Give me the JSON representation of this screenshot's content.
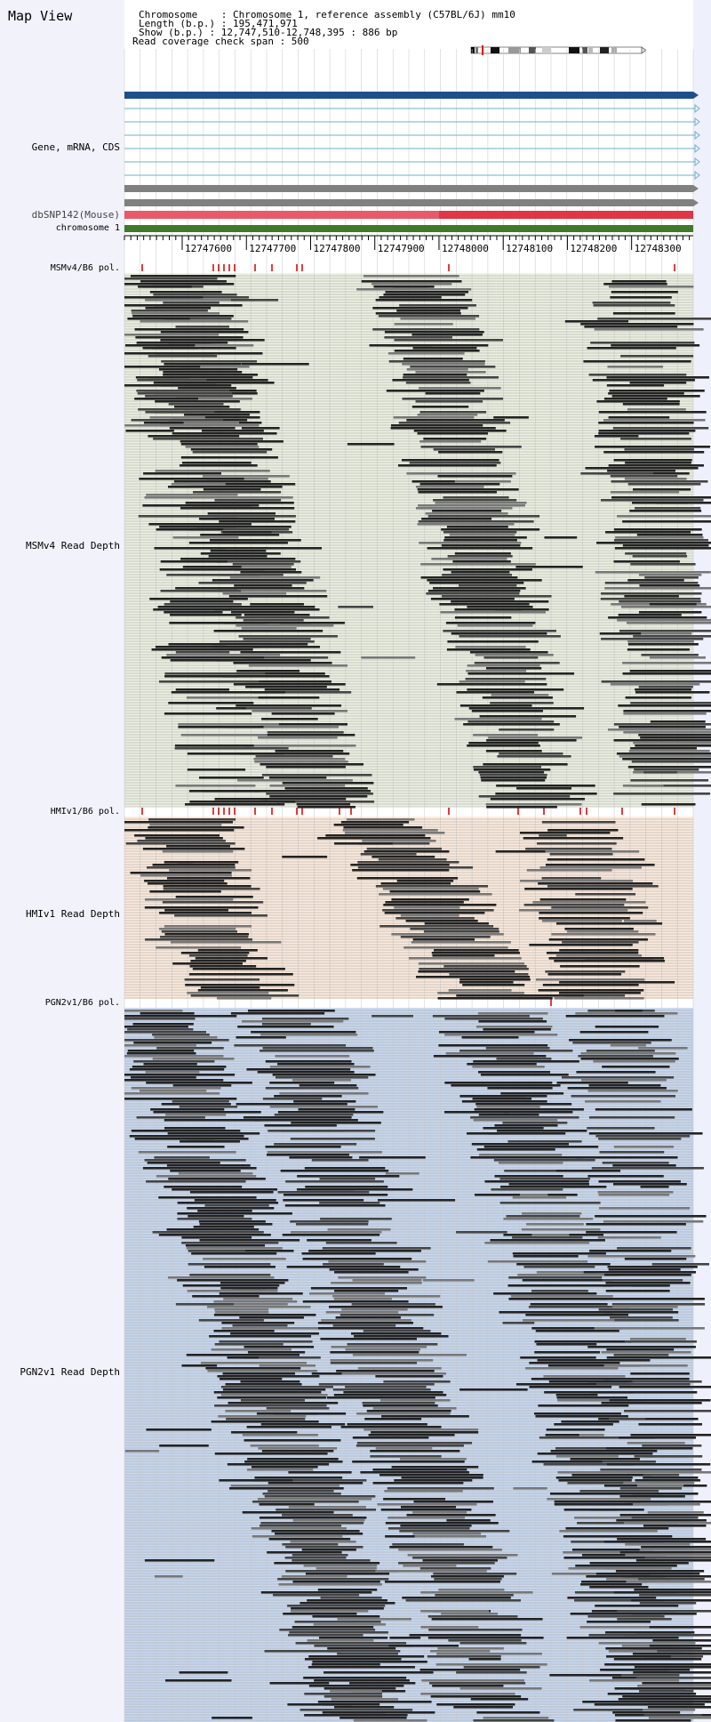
{
  "header": {
    "title": "Map View",
    "info_lines": [
      "Chromosome    : Chromosome 1, reference assembly (C57BL/6J) mm10",
      "Length (b.p.) : 195,471,971",
      "Show (b.p.) : 12,747,510-12,748,395 : 886 bp",
      "Read coverage check span : 500"
    ]
  },
  "tracks": {
    "gene": "Gene, mRNA, CDS",
    "snp": "dbSNP142(Mouse)",
    "chromosome": "chromosome 1",
    "msm_pol": "MSMv4/B6 pol.",
    "msm_depth": "MSMv4 Read Depth",
    "hmi_pol": "HMIv1/B6 pol.",
    "hmi_depth": "HMIv1 Read Depth",
    "pgn_pol": "PGN2v1/B6 pol.",
    "pgn_depth": "PGN2v1 Read Depth"
  },
  "ruler": {
    "start": 12747510,
    "end": 12748395,
    "ticks": [
      "12747600",
      "12747700",
      "12747800",
      "12747900",
      "12748000",
      "12748100",
      "12748200",
      "12748300"
    ]
  },
  "colors": {
    "gene_main": "#1f4e8c",
    "transcript": "#6fb0c8",
    "cds": "#808080",
    "snp": "#e85a6a",
    "chromosome": "#3f7a2a",
    "msm_bg": "#ecf1e2",
    "hmi_bg": "#fcebdd",
    "pgn_bg": "#c9d9f0",
    "polymorphism": "#cc0000"
  }
}
